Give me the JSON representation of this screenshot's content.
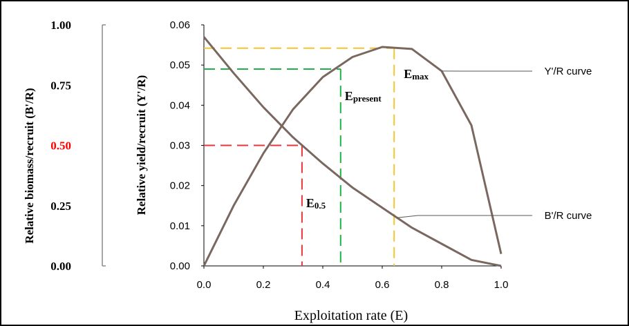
{
  "chart_data": {
    "type": "line",
    "xlabel": "Exploitation rate (E)",
    "ylabel_left": "Relative biomass/recruit (B'/R)",
    "ylabel_right": "Relative yield/recruit (Y'/R)",
    "xlim": [
      0.0,
      1.0
    ],
    "ylim_yield": [
      0.0,
      0.06
    ],
    "ylim_biomass": [
      0.0,
      1.0
    ],
    "x_ticks": [
      "0.0",
      "0.2",
      "0.4",
      "0.6",
      "0.8",
      "1.0"
    ],
    "yield_ticks": [
      "0.00",
      "0.01",
      "0.02",
      "0.03",
      "0.04",
      "0.05",
      "0.06"
    ],
    "biomass_ticks": [
      "0.00",
      "0.25",
      "0.50",
      "0.75",
      "1.00"
    ],
    "highlight_tick": "0.50",
    "highlight_color": "#ff0000",
    "curve_color": "#7a6760",
    "series": [
      {
        "name": "Y'/R curve",
        "axis": "yield",
        "x": [
          0.0,
          0.1,
          0.2,
          0.3,
          0.4,
          0.5,
          0.6,
          0.7,
          0.8,
          0.9,
          1.0
        ],
        "y": [
          0.0,
          0.015,
          0.028,
          0.039,
          0.047,
          0.052,
          0.0545,
          0.054,
          0.0485,
          0.035,
          0.003
        ]
      },
      {
        "name": "B'/R curve",
        "axis": "yield",
        "x": [
          0.0,
          0.1,
          0.2,
          0.3,
          0.4,
          0.5,
          0.6,
          0.7,
          0.8,
          0.9,
          1.0
        ],
        "y": [
          0.057,
          0.048,
          0.0395,
          0.032,
          0.0255,
          0.0195,
          0.0145,
          0.0095,
          0.0055,
          0.0015,
          0.0
        ]
      }
    ],
    "reference_lines": [
      {
        "label_main": "E",
        "label_sub": "0.5",
        "x": 0.33,
        "y": 0.03,
        "color": "#e8343a"
      },
      {
        "label_main": "E",
        "label_sub": "present",
        "x": 0.46,
        "y": 0.049,
        "color": "#22b04a"
      },
      {
        "label_main": "E",
        "label_sub": "max",
        "x": 0.64,
        "y": 0.0542,
        "color": "#f4c430"
      }
    ]
  }
}
